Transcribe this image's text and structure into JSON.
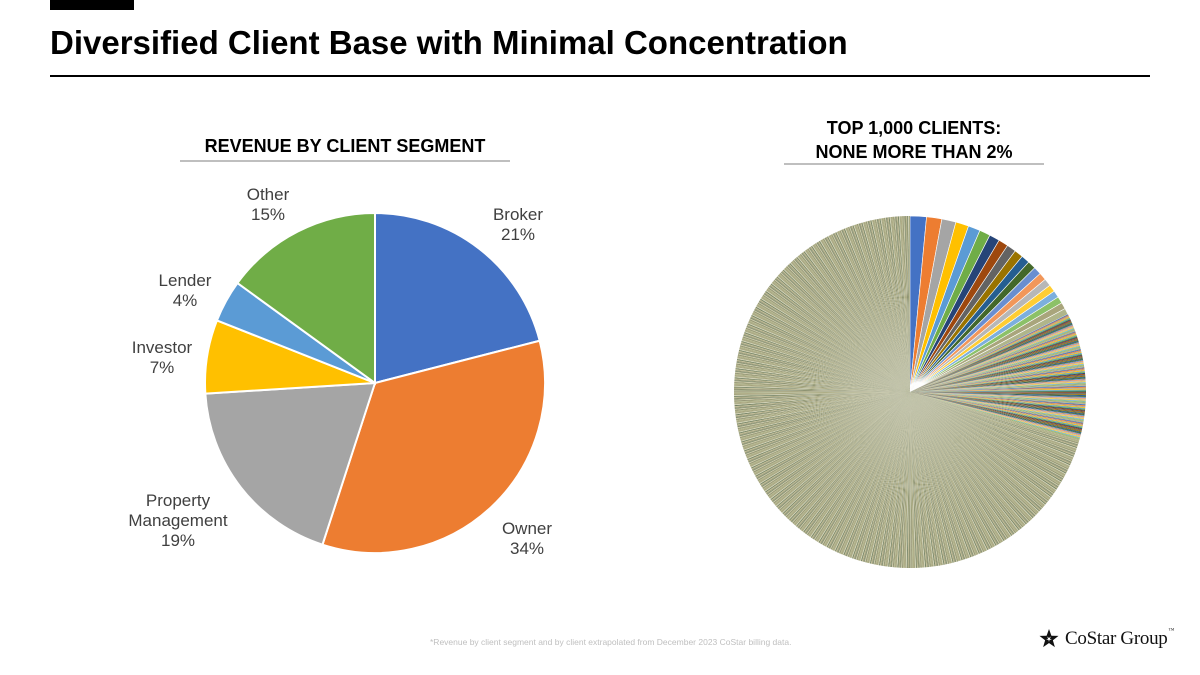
{
  "slide": {
    "title": "Diversified Client Base with Minimal Concentration",
    "footnote": "*Revenue by client segment and by client extrapolated from December 2023 CoStar billing data.",
    "logo": {
      "text": "CoStar Group",
      "tm": "™",
      "icon": "costar-star-icon"
    }
  },
  "chart_data": [
    {
      "type": "pie",
      "title": "REVENUE BY CLIENT SEGMENT",
      "categories": [
        "Broker",
        "Owner",
        "Property Management",
        "Investor",
        "Lender",
        "Other"
      ],
      "values": [
        21,
        34,
        19,
        7,
        4,
        15
      ],
      "value_labels": [
        "21%",
        "34%",
        "19%",
        "7%",
        "4%",
        "15%"
      ],
      "colors": [
        "#4472c4",
        "#ed7d31",
        "#a5a5a5",
        "#ffc000",
        "#5b9bd5",
        "#70ad47"
      ],
      "start": "12 o'clock, clockwise",
      "legend": "none"
    },
    {
      "type": "pie",
      "title_lines": [
        "TOP 1,000 CLIENTS:",
        "NONE MORE THAN 2%"
      ],
      "note": "1,000 slices, each no more than 2%; first slices largest, decreasing clockwise, remaining slices very thin",
      "leading_values_pct": [
        1.5,
        1.4,
        1.3,
        1.2,
        1.1,
        1.0,
        0.95,
        0.9,
        0.85,
        0.8,
        0.78,
        0.75,
        0.72,
        0.7,
        0.68,
        0.66,
        0.64,
        0.62,
        0.6,
        0.58
      ],
      "colors": [
        "#4472c4",
        "#ed7d31",
        "#a5a5a5",
        "#ffc000",
        "#5b9bd5",
        "#70ad47",
        "#264478",
        "#9e480e",
        "#636363",
        "#997300",
        "#255e91",
        "#43682b",
        "#698ed0",
        "#f1975a",
        "#b7b7b7",
        "#ffcd33",
        "#7cafdd",
        "#8cc168",
        "#a9a57c",
        "#b0b58a"
      ],
      "legend": "none"
    }
  ]
}
